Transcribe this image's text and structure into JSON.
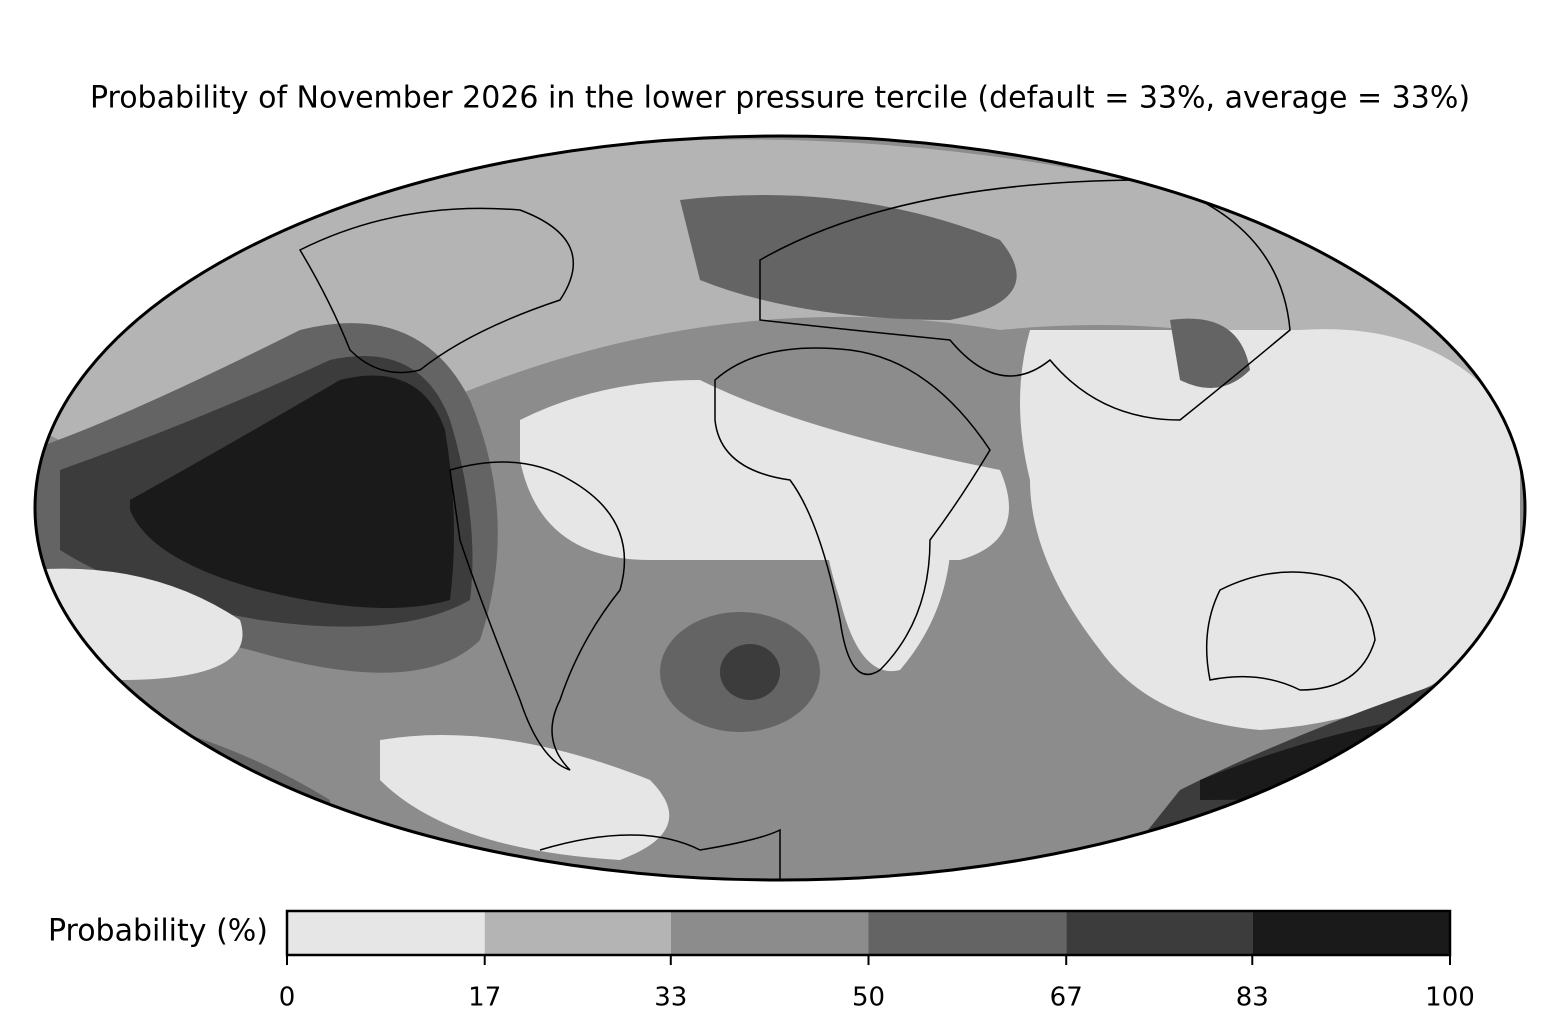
{
  "title": "Probability of November 2026 in the lower pressure tercile (default = 33%, average = 33%)",
  "colorbar": {
    "label": "Probability (%)",
    "lim": [
      0,
      100
    ],
    "ticks": [
      0,
      17,
      33,
      50,
      67,
      83,
      100
    ],
    "colors": [
      "#e6e6e6",
      "#b4b4b4",
      "#8c8c8c",
      "#646464",
      "#3c3c3c",
      "#1a1a1a"
    ]
  }
}
